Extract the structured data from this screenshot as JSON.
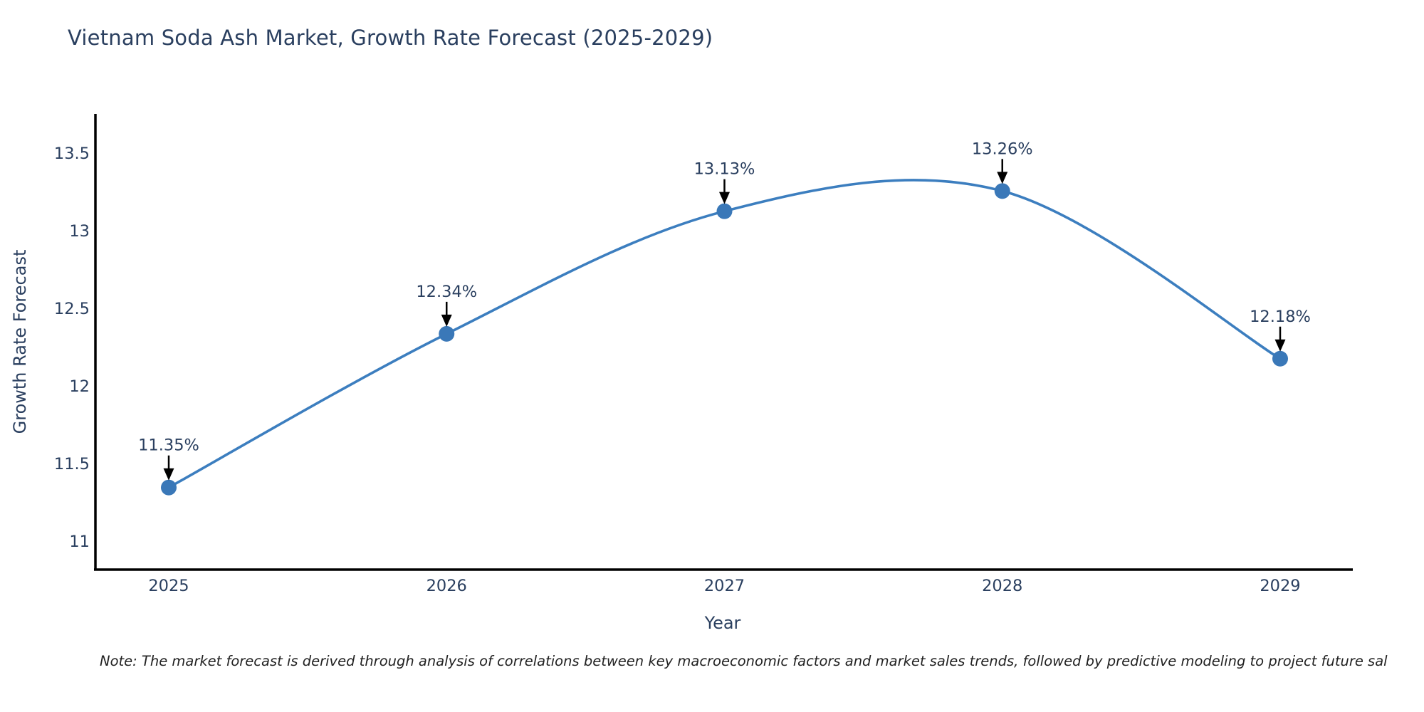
{
  "title": "Vietnam Soda Ash Market, Growth Rate Forecast (2025-2029)",
  "note": "Note: The market forecast is derived through analysis of correlations between key macroeconomic factors and market sales trends, followed by predictive modeling to project future sal",
  "chart_data": {
    "type": "line",
    "line_shape": "spline",
    "x": [
      2025,
      2026,
      2027,
      2028,
      2029
    ],
    "values": [
      11.35,
      12.34,
      13.13,
      13.26,
      12.18
    ],
    "point_labels": [
      "11.35%",
      "12.34%",
      "13.13%",
      "13.26%",
      "12.18%"
    ],
    "title": "Vietnam Soda Ash Market, Growth Rate Forecast (2025-2029)",
    "xlabel": "Year",
    "ylabel": "Growth Rate Forecast",
    "yticks": [
      11,
      11.5,
      12,
      12.5,
      13,
      13.5
    ],
    "ylim": [
      10.82,
      13.76
    ],
    "grid": false,
    "legend": "none",
    "annotations_have_arrows": true,
    "line_color": "#3c7ebf",
    "marker_color": "#3a78b8",
    "arrow_color": "#000000",
    "axis_line_color": "#000000",
    "text_color": "#2a3f5f"
  },
  "colors": {
    "background": "#ffffff",
    "title_text": "#2a3f5f",
    "note_text": "#222222"
  }
}
